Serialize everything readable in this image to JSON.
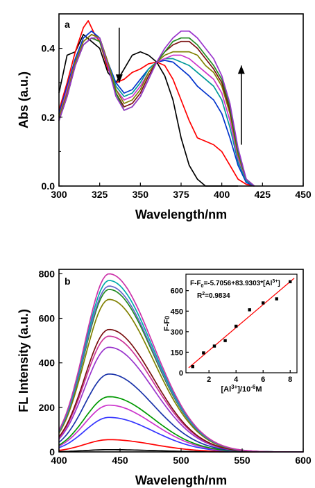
{
  "chart_data": [
    {
      "panel": "a",
      "type": "line",
      "xlabel": "Wavelength/nm",
      "ylabel": "Abs (a.u.)",
      "xlim": [
        300,
        450
      ],
      "ylim": [
        0.0,
        0.5
      ],
      "xticks": [
        300,
        325,
        350,
        375,
        400,
        425,
        450
      ],
      "xtick_labels": [
        "300",
        "325",
        "350",
        "375",
        "400",
        "425",
        "450"
      ],
      "yticks": [
        0.0,
        0.2,
        0.4
      ],
      "ytick_labels": [
        "0.0",
        "0.2",
        "0.4"
      ],
      "annotations": [
        {
          "type": "arrow-down",
          "x": 337,
          "y_from": 0.46,
          "y_to": 0.3
        },
        {
          "type": "arrow-up",
          "x": 412,
          "y_from": 0.12,
          "y_to": 0.35
        }
      ],
      "series": [
        {
          "color": "#000000",
          "x": [
            300,
            305,
            310,
            315,
            320,
            325,
            330,
            335,
            340,
            345,
            350,
            355,
            360,
            365,
            370,
            375,
            380,
            385,
            390,
            395,
            400,
            405,
            410
          ],
          "y": [
            0.27,
            0.38,
            0.39,
            0.44,
            0.42,
            0.4,
            0.33,
            0.3,
            0.34,
            0.38,
            0.39,
            0.38,
            0.36,
            0.32,
            0.25,
            0.14,
            0.06,
            0.02,
            0.0,
            0.0,
            0.0,
            0.0,
            0.0
          ]
        },
        {
          "color": "#ff0000",
          "x": [
            300,
            305,
            310,
            315,
            318,
            322,
            325,
            330,
            335,
            340,
            345,
            350,
            355,
            360,
            365,
            370,
            375,
            380,
            385,
            390,
            395,
            400,
            405,
            410,
            415,
            420
          ],
          "y": [
            0.22,
            0.3,
            0.39,
            0.46,
            0.48,
            0.44,
            0.42,
            0.34,
            0.3,
            0.31,
            0.33,
            0.34,
            0.355,
            0.36,
            0.35,
            0.31,
            0.25,
            0.19,
            0.14,
            0.13,
            0.12,
            0.1,
            0.06,
            0.02,
            0.005,
            0.0
          ]
        },
        {
          "color": "#0033cc",
          "x": [
            300,
            305,
            310,
            315,
            320,
            325,
            330,
            335,
            340,
            345,
            350,
            355,
            360,
            365,
            370,
            375,
            380,
            385,
            390,
            395,
            400,
            405,
            410,
            415,
            420
          ],
          "y": [
            0.21,
            0.29,
            0.37,
            0.43,
            0.45,
            0.43,
            0.36,
            0.3,
            0.27,
            0.28,
            0.31,
            0.34,
            0.36,
            0.365,
            0.36,
            0.34,
            0.32,
            0.29,
            0.27,
            0.25,
            0.21,
            0.14,
            0.06,
            0.01,
            0.0
          ]
        },
        {
          "color": "#009999",
          "x": [
            300,
            305,
            310,
            315,
            320,
            325,
            330,
            335,
            340,
            345,
            350,
            355,
            360,
            365,
            370,
            375,
            380,
            385,
            390,
            395,
            400,
            405,
            410,
            415,
            420
          ],
          "y": [
            0.2,
            0.28,
            0.36,
            0.42,
            0.44,
            0.43,
            0.36,
            0.29,
            0.26,
            0.27,
            0.3,
            0.34,
            0.36,
            0.37,
            0.37,
            0.36,
            0.35,
            0.33,
            0.31,
            0.29,
            0.25,
            0.17,
            0.07,
            0.015,
            0.0
          ]
        },
        {
          "color": "#cc33cc",
          "x": [
            300,
            305,
            310,
            315,
            320,
            325,
            330,
            335,
            340,
            345,
            350,
            355,
            360,
            365,
            370,
            375,
            380,
            385,
            390,
            395,
            400,
            405,
            410,
            415,
            420
          ],
          "y": [
            0.2,
            0.28,
            0.36,
            0.42,
            0.44,
            0.43,
            0.36,
            0.28,
            0.25,
            0.26,
            0.29,
            0.33,
            0.36,
            0.37,
            0.38,
            0.38,
            0.37,
            0.35,
            0.33,
            0.31,
            0.27,
            0.19,
            0.08,
            0.02,
            0.0
          ]
        },
        {
          "color": "#808000",
          "x": [
            300,
            305,
            310,
            315,
            320,
            325,
            330,
            335,
            340,
            345,
            350,
            355,
            360,
            365,
            370,
            375,
            380,
            385,
            390,
            395,
            400,
            405,
            410,
            415,
            420
          ],
          "y": [
            0.2,
            0.27,
            0.36,
            0.42,
            0.44,
            0.43,
            0.36,
            0.28,
            0.24,
            0.25,
            0.28,
            0.33,
            0.36,
            0.38,
            0.39,
            0.39,
            0.39,
            0.38,
            0.35,
            0.33,
            0.29,
            0.21,
            0.09,
            0.02,
            0.0
          ]
        },
        {
          "color": "#7a1010",
          "x": [
            300,
            305,
            310,
            315,
            320,
            325,
            330,
            335,
            340,
            345,
            350,
            355,
            360,
            365,
            370,
            375,
            380,
            385,
            390,
            395,
            400,
            405,
            410,
            415,
            420
          ],
          "y": [
            0.19,
            0.26,
            0.35,
            0.41,
            0.43,
            0.42,
            0.35,
            0.27,
            0.23,
            0.24,
            0.27,
            0.32,
            0.36,
            0.39,
            0.41,
            0.42,
            0.42,
            0.4,
            0.37,
            0.34,
            0.3,
            0.22,
            0.1,
            0.02,
            0.0
          ]
        },
        {
          "color": "#228b22",
          "x": [
            300,
            305,
            310,
            315,
            320,
            325,
            330,
            335,
            340,
            345,
            350,
            355,
            360,
            365,
            370,
            375,
            380,
            385,
            390,
            395,
            400,
            405,
            410,
            415,
            420
          ],
          "y": [
            0.19,
            0.26,
            0.35,
            0.41,
            0.43,
            0.42,
            0.35,
            0.27,
            0.22,
            0.23,
            0.26,
            0.31,
            0.36,
            0.39,
            0.42,
            0.43,
            0.43,
            0.41,
            0.38,
            0.35,
            0.31,
            0.23,
            0.1,
            0.02,
            0.0
          ]
        },
        {
          "color": "#9933cc",
          "x": [
            300,
            305,
            310,
            315,
            320,
            325,
            330,
            335,
            340,
            345,
            350,
            355,
            360,
            365,
            370,
            375,
            380,
            385,
            390,
            395,
            400,
            405,
            410,
            415,
            420
          ],
          "y": [
            0.19,
            0.26,
            0.35,
            0.41,
            0.43,
            0.43,
            0.35,
            0.26,
            0.22,
            0.23,
            0.26,
            0.31,
            0.36,
            0.4,
            0.43,
            0.45,
            0.45,
            0.43,
            0.4,
            0.37,
            0.32,
            0.24,
            0.11,
            0.02,
            0.0
          ]
        }
      ]
    },
    {
      "panel": "b",
      "type": "line",
      "xlabel": "Wavelength/nm",
      "ylabel": "FL Intensity (a.u.)",
      "xlim": [
        400,
        600
      ],
      "ylim": [
        0,
        820
      ],
      "xticks": [
        400,
        450,
        500,
        550,
        600
      ],
      "xtick_labels": [
        "400",
        "450",
        "500",
        "550",
        "600"
      ],
      "yticks": [
        0,
        200,
        400,
        600,
        800
      ],
      "ytick_labels": [
        "0",
        "200",
        "400",
        "600",
        "800"
      ],
      "series": [
        {
          "color": "#000000",
          "peak": 10
        },
        {
          "color": "#ff0000",
          "peak": 55
        },
        {
          "color": "#3333ff",
          "peak": 155
        },
        {
          "color": "#cc33cc",
          "peak": 210
        },
        {
          "color": "#009900",
          "peak": 248
        },
        {
          "color": "#1a33aa",
          "peak": 350
        },
        {
          "color": "#9933cc",
          "peak": 470
        },
        {
          "color": "#cc3399",
          "peak": 520
        },
        {
          "color": "#7a1010",
          "peak": 550
        },
        {
          "color": "#808000",
          "peak": 685
        },
        {
          "color": "#228b22",
          "peak": 730
        },
        {
          "color": "#6666cc",
          "peak": 745
        },
        {
          "color": "#00aaaa",
          "peak": 770
        },
        {
          "color": "#cc33aa",
          "peak": 800
        }
      ],
      "inset": {
        "type": "scatter",
        "xlabel": "[Al3+]/10-6M",
        "ylabel": "F-F0",
        "xlim": [
          0.3,
          8.5
        ],
        "ylim": [
          0,
          720
        ],
        "xticks": [
          2,
          4,
          6,
          8
        ],
        "xtick_labels": [
          "2",
          "4",
          "6",
          "8"
        ],
        "yticks": [
          0,
          150,
          300,
          450,
          600
        ],
        "ytick_labels": [
          "0",
          "150",
          "300",
          "450",
          "600"
        ],
        "points": {
          "x": [
            0.8,
            1.6,
            2.4,
            3.2,
            4.0,
            5.0,
            6.0,
            7.0,
            8.0
          ],
          "y": [
            45,
            145,
            195,
            235,
            340,
            460,
            510,
            540,
            665
          ]
        },
        "fit": {
          "intercept": -5.7056,
          "slope": 83.9303,
          "color": "#ff0000"
        },
        "equation_lines": [
          "F-F",
          "0",
          "=-5.7056+83.9303*[Al",
          "3+",
          "]"
        ],
        "r2_label": "R",
        "r2_sup": "2",
        "r2_value": "=0.9834"
      }
    }
  ]
}
